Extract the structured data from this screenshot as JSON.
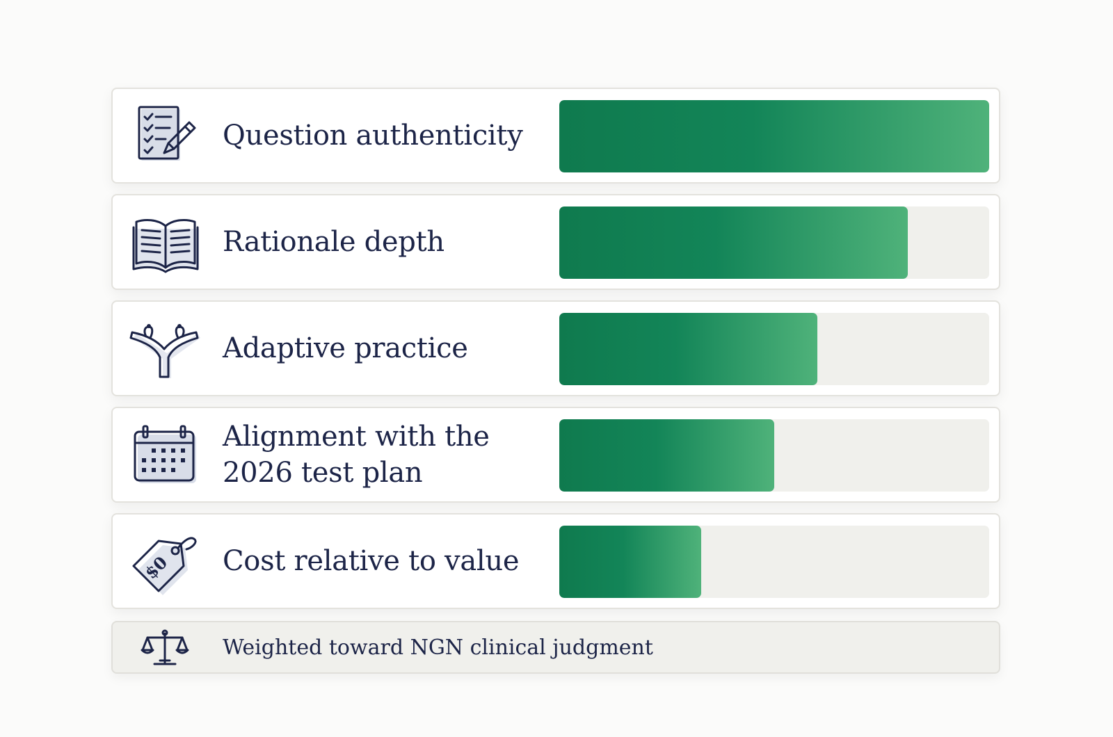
{
  "chart_data": {
    "type": "bar",
    "orientation": "horizontal",
    "categories": [
      "Question authenticity",
      "Rationale depth",
      "Adaptive practice",
      "Alignment with the 2026 test plan",
      "Cost relative to value"
    ],
    "values": [
      1.0,
      0.81,
      0.6,
      0.5,
      0.33
    ],
    "value_scale": "fraction of full bar",
    "xlim": [
      0,
      1
    ],
    "grid": false,
    "colors": {
      "bar_start": "#0f7a4e",
      "bar_end": "#4fb27a",
      "track": "#f0f0ec",
      "text": "#1c2447"
    }
  },
  "rows": [
    {
      "label_lines": [
        "Question authenticity"
      ],
      "icon": "checklist-pencil-icon"
    },
    {
      "label_lines": [
        "Rationale depth"
      ],
      "icon": "open-book-icon"
    },
    {
      "label_lines": [
        "Adaptive practice"
      ],
      "icon": "branching-paths-icon"
    },
    {
      "label_lines": [
        "Alignment with the",
        "2026 test plan"
      ],
      "icon": "calendar-icon"
    },
    {
      "label_lines": [
        "Cost relative to value"
      ],
      "icon": "price-tag-icon"
    }
  ],
  "footer": {
    "text": "Weighted toward NGN clinical judgment",
    "icon": "balance-scale-icon"
  }
}
